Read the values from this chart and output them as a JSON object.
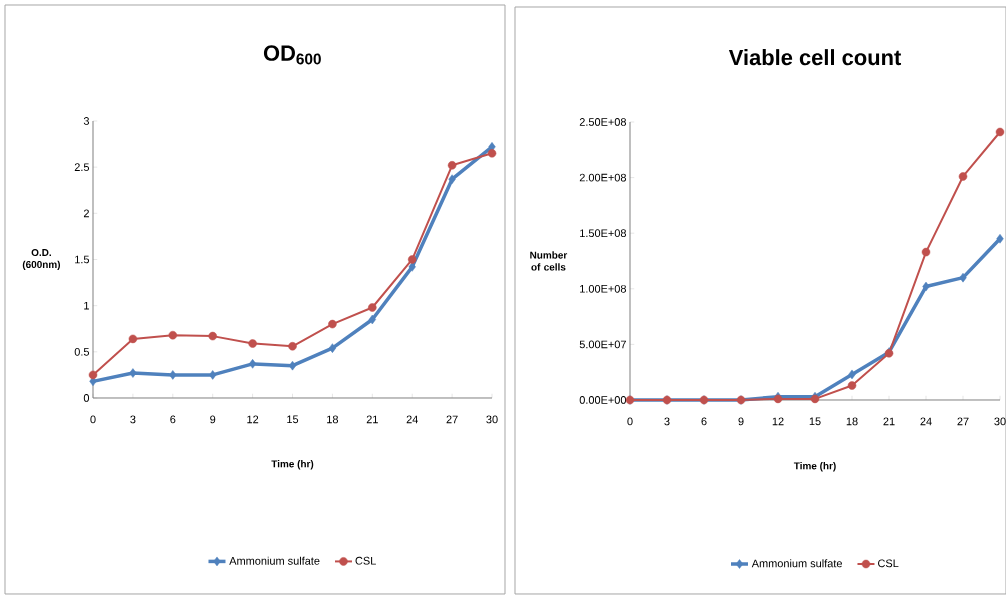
{
  "chart_data": [
    {
      "type": "line",
      "title": "OD$_{600}$",
      "xlabel": "Time (hr)",
      "ylabel": "O.D. (600nm)",
      "categories": [
        "0",
        "3",
        "6",
        "9",
        "12",
        "15",
        "18",
        "21",
        "24",
        "27",
        "30"
      ],
      "ylim": [
        0,
        3
      ],
      "yticks": [
        0,
        0.5,
        1,
        1.5,
        2,
        2.5,
        3
      ],
      "legend": "bottom",
      "series": [
        {
          "name": "Ammonium sulfate",
          "color": "#4f81bd",
          "marker": "diamond",
          "values": [
            0.18,
            0.27,
            0.25,
            0.25,
            0.37,
            0.35,
            0.54,
            0.85,
            1.42,
            2.37,
            2.72
          ]
        },
        {
          "name": "CSL",
          "color": "#c0504d",
          "marker": "circle",
          "values": [
            0.25,
            0.64,
            0.68,
            0.67,
            0.59,
            0.56,
            0.8,
            0.98,
            1.5,
            2.52,
            2.65
          ]
        }
      ]
    },
    {
      "type": "line",
      "title": "Viable cell count",
      "xlabel": "Time (hr)",
      "ylabel": "Number of cells",
      "categories": [
        "0",
        "3",
        "6",
        "9",
        "12",
        "15",
        "18",
        "21",
        "24",
        "27",
        "30"
      ],
      "ylim": [
        0,
        250000000
      ],
      "yticks": [
        {
          "value": 0,
          "label": "0.00E+00"
        },
        {
          "value": 50000000,
          "label": "5.00E+07"
        },
        {
          "value": 100000000,
          "label": "1.00E+08"
        },
        {
          "value": 150000000,
          "label": "1.50E+08"
        },
        {
          "value": 200000000,
          "label": "2.00E+08"
        },
        {
          "value": 250000000,
          "label": "2.50E+08"
        }
      ],
      "legend": "bottom",
      "series": [
        {
          "name": "Ammonium sulfate",
          "color": "#4f81bd",
          "marker": "diamond",
          "values": [
            0,
            0,
            0,
            0,
            3000000,
            3000000,
            23000000,
            43000000,
            102000000,
            110000000,
            145000000
          ]
        },
        {
          "name": "CSL",
          "color": "#c0504d",
          "marker": "circle",
          "values": [
            0,
            0,
            0,
            0,
            1000000,
            1000000,
            13000000,
            42000000,
            133000000,
            201000000,
            241000000
          ]
        }
      ]
    }
  ]
}
